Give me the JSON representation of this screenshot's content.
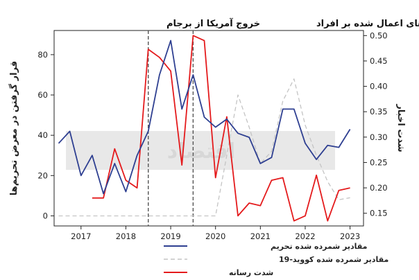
{
  "chart_data": {
    "type": "line",
    "annotations": [
      {
        "text": "خروج آمریکا از برجام",
        "x": 2018.5
      },
      {
        "text": "تحریم‌های اعمال شده بر افراد",
        "x": 2019.5
      }
    ],
    "y_left_label": "قرار گرفتن در معرض تحریم‌ها",
    "y_right_label": "شدت اخبار",
    "xlim": [
      2016.4,
      2023.3
    ],
    "ylim_left": [
      -5,
      92
    ],
    "ylim_right": [
      0.125,
      0.51
    ],
    "x_ticks": [
      2017,
      2018,
      2019,
      2020,
      2021,
      2022,
      2023
    ],
    "y_left_ticks": [
      0,
      20,
      40,
      60,
      80
    ],
    "y_right_ticks": [
      "0.15",
      "0.20",
      "0.25",
      "0.30",
      "0.35",
      "0.40",
      "0.45",
      "0.50"
    ],
    "legend_placement": "bottom-center",
    "series": [
      {
        "name": "مقادیر شمرده شده تحریم",
        "axis": "left",
        "color": "#2e3f91",
        "dash": "solid",
        "x": [
          2016.5,
          2016.75,
          2017.0,
          2017.25,
          2017.5,
          2017.75,
          2018.0,
          2018.25,
          2018.5,
          2018.75,
          2019.0,
          2019.25,
          2019.5,
          2019.75,
          2020.0,
          2020.25,
          2020.5,
          2020.75,
          2021.0,
          2021.25,
          2021.5,
          2021.75,
          2022.0,
          2022.25,
          2022.5,
          2022.75,
          2023.0
        ],
        "values": [
          36,
          42,
          20,
          30,
          11,
          26,
          12,
          30,
          42,
          70,
          87,
          53,
          70,
          49,
          44,
          48,
          41,
          39,
          26,
          29,
          53,
          53,
          36,
          28,
          35,
          34,
          43
        ]
      },
      {
        "name": "مقادیر شمرده شده کووید-19",
        "axis": "left",
        "color": "#c4c4c4",
        "dash": "dashed",
        "x": [
          2016.5,
          2019.75,
          2020.0,
          2020.25,
          2020.5,
          2020.75,
          2021.0,
          2021.25,
          2021.5,
          2021.75,
          2022.0,
          2022.25,
          2022.5,
          2022.75,
          2023.0
        ],
        "values": [
          0,
          0,
          0,
          30,
          60,
          44,
          26,
          32,
          57,
          68,
          45,
          30,
          17,
          8,
          9
        ]
      },
      {
        "name": "شدت رسانه",
        "axis": "right",
        "color": "#e41a1c",
        "dash": "solid",
        "x": [
          2017.25,
          2017.5,
          2017.75,
          2018.0,
          2018.25,
          2018.5,
          2018.75,
          2019.0,
          2019.25,
          2019.5,
          2019.75,
          2020.0,
          2020.25,
          2020.5,
          2020.75,
          2021.0,
          2021.25,
          2021.5,
          2021.75,
          2022.0,
          2022.25,
          2022.5,
          2022.75,
          2023.0
        ],
        "values": [
          0.18,
          0.18,
          0.277,
          0.215,
          0.2,
          0.473,
          0.457,
          0.43,
          0.245,
          0.5,
          0.49,
          0.22,
          0.34,
          0.145,
          0.17,
          0.165,
          0.215,
          0.22,
          0.135,
          0.145,
          0.225,
          0.135,
          0.195,
          0.2
        ]
      }
    ]
  }
}
